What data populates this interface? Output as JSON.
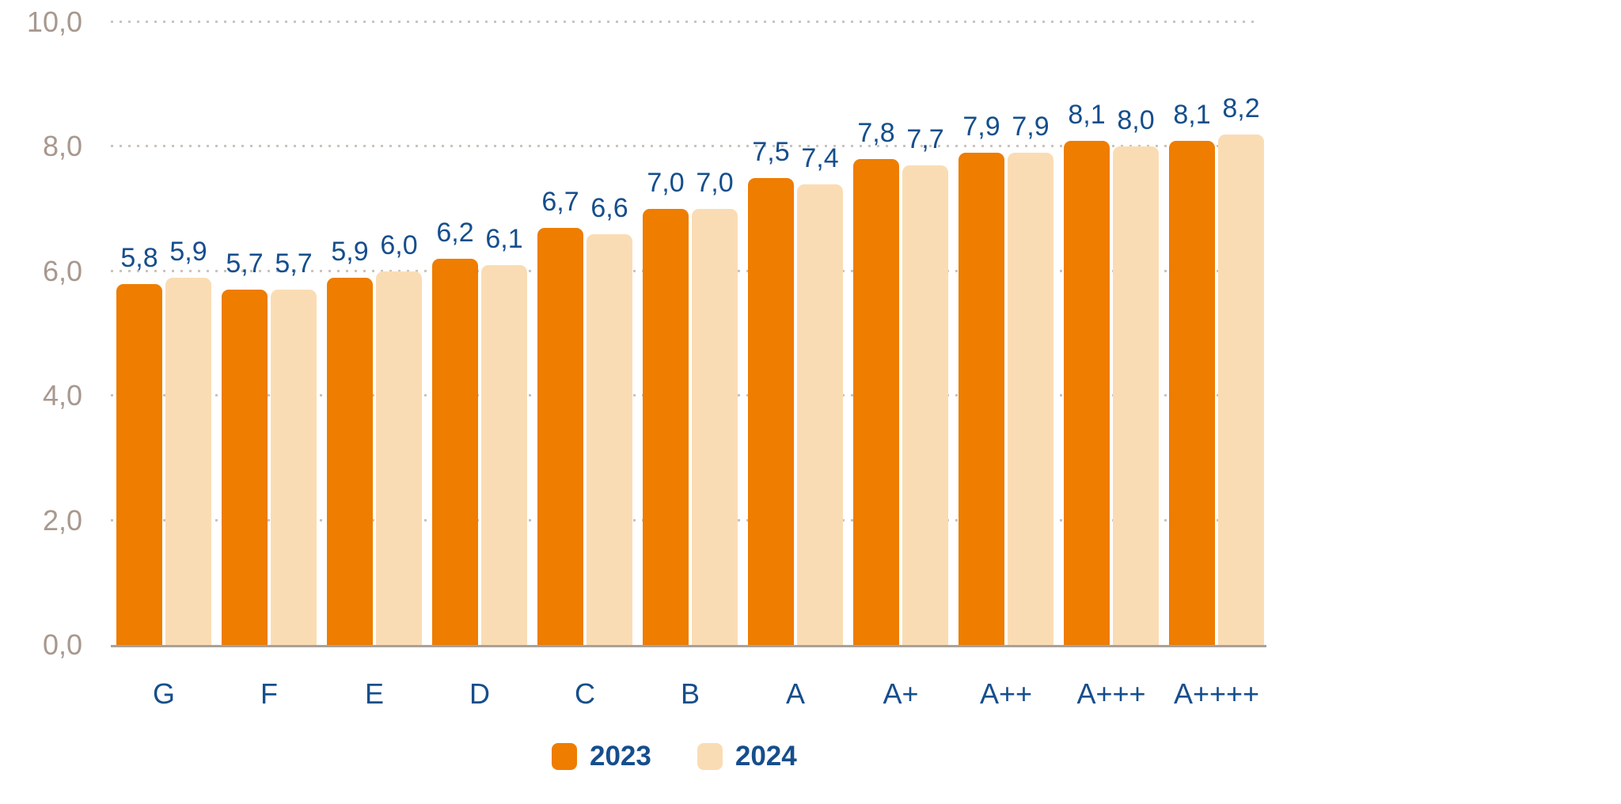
{
  "chart_data": {
    "type": "bar",
    "title": "",
    "xlabel": "",
    "ylabel": "",
    "categories": [
      "G",
      "F",
      "E",
      "D",
      "C",
      "B",
      "A",
      "A+",
      "A++",
      "A+++",
      "A++++"
    ],
    "series": [
      {
        "name": "2023",
        "color": "#ee7d00",
        "values": [
          5.8,
          5.7,
          5.9,
          6.2,
          6.7,
          7.0,
          7.5,
          7.8,
          7.9,
          8.1,
          8.1
        ],
        "labels": [
          "5,8",
          "5,7",
          "5,9",
          "6,2",
          "6,7",
          "7,0",
          "7,5",
          "7,8",
          "7,9",
          "8,1",
          "8,1"
        ]
      },
      {
        "name": "2024",
        "color": "#fadcb4",
        "values": [
          5.9,
          5.7,
          6.0,
          6.1,
          6.6,
          7.0,
          7.4,
          7.7,
          7.9,
          8.0,
          8.2
        ],
        "labels": [
          "5,9",
          "5,7",
          "6,0",
          "6,1",
          "6,6",
          "7,0",
          "7,4",
          "7,7",
          "7,9",
          "8,0",
          "8,2"
        ]
      }
    ],
    "y_axis": {
      "min": 0,
      "max": 10,
      "ticks": [
        {
          "value": 0,
          "label": "0,0"
        },
        {
          "value": 2,
          "label": "2,0"
        },
        {
          "value": 4,
          "label": "4,0"
        },
        {
          "value": 6,
          "label": "6,0"
        },
        {
          "value": 8,
          "label": "8,0"
        },
        {
          "value": 10,
          "label": "10,0"
        }
      ],
      "gridline_values": [
        2,
        4,
        6,
        8,
        10
      ]
    },
    "grid": "dotted-horizontal",
    "legend_position": "bottom"
  },
  "colors": {
    "value_label_text": "#164e8c",
    "category_label_text": "#164e8c",
    "legend_text": "#164e8c",
    "y_tick_text": "#a8988e",
    "gridline": "#cbc4bd",
    "axis_line": "#a9a19a",
    "background": "#ffffff"
  }
}
